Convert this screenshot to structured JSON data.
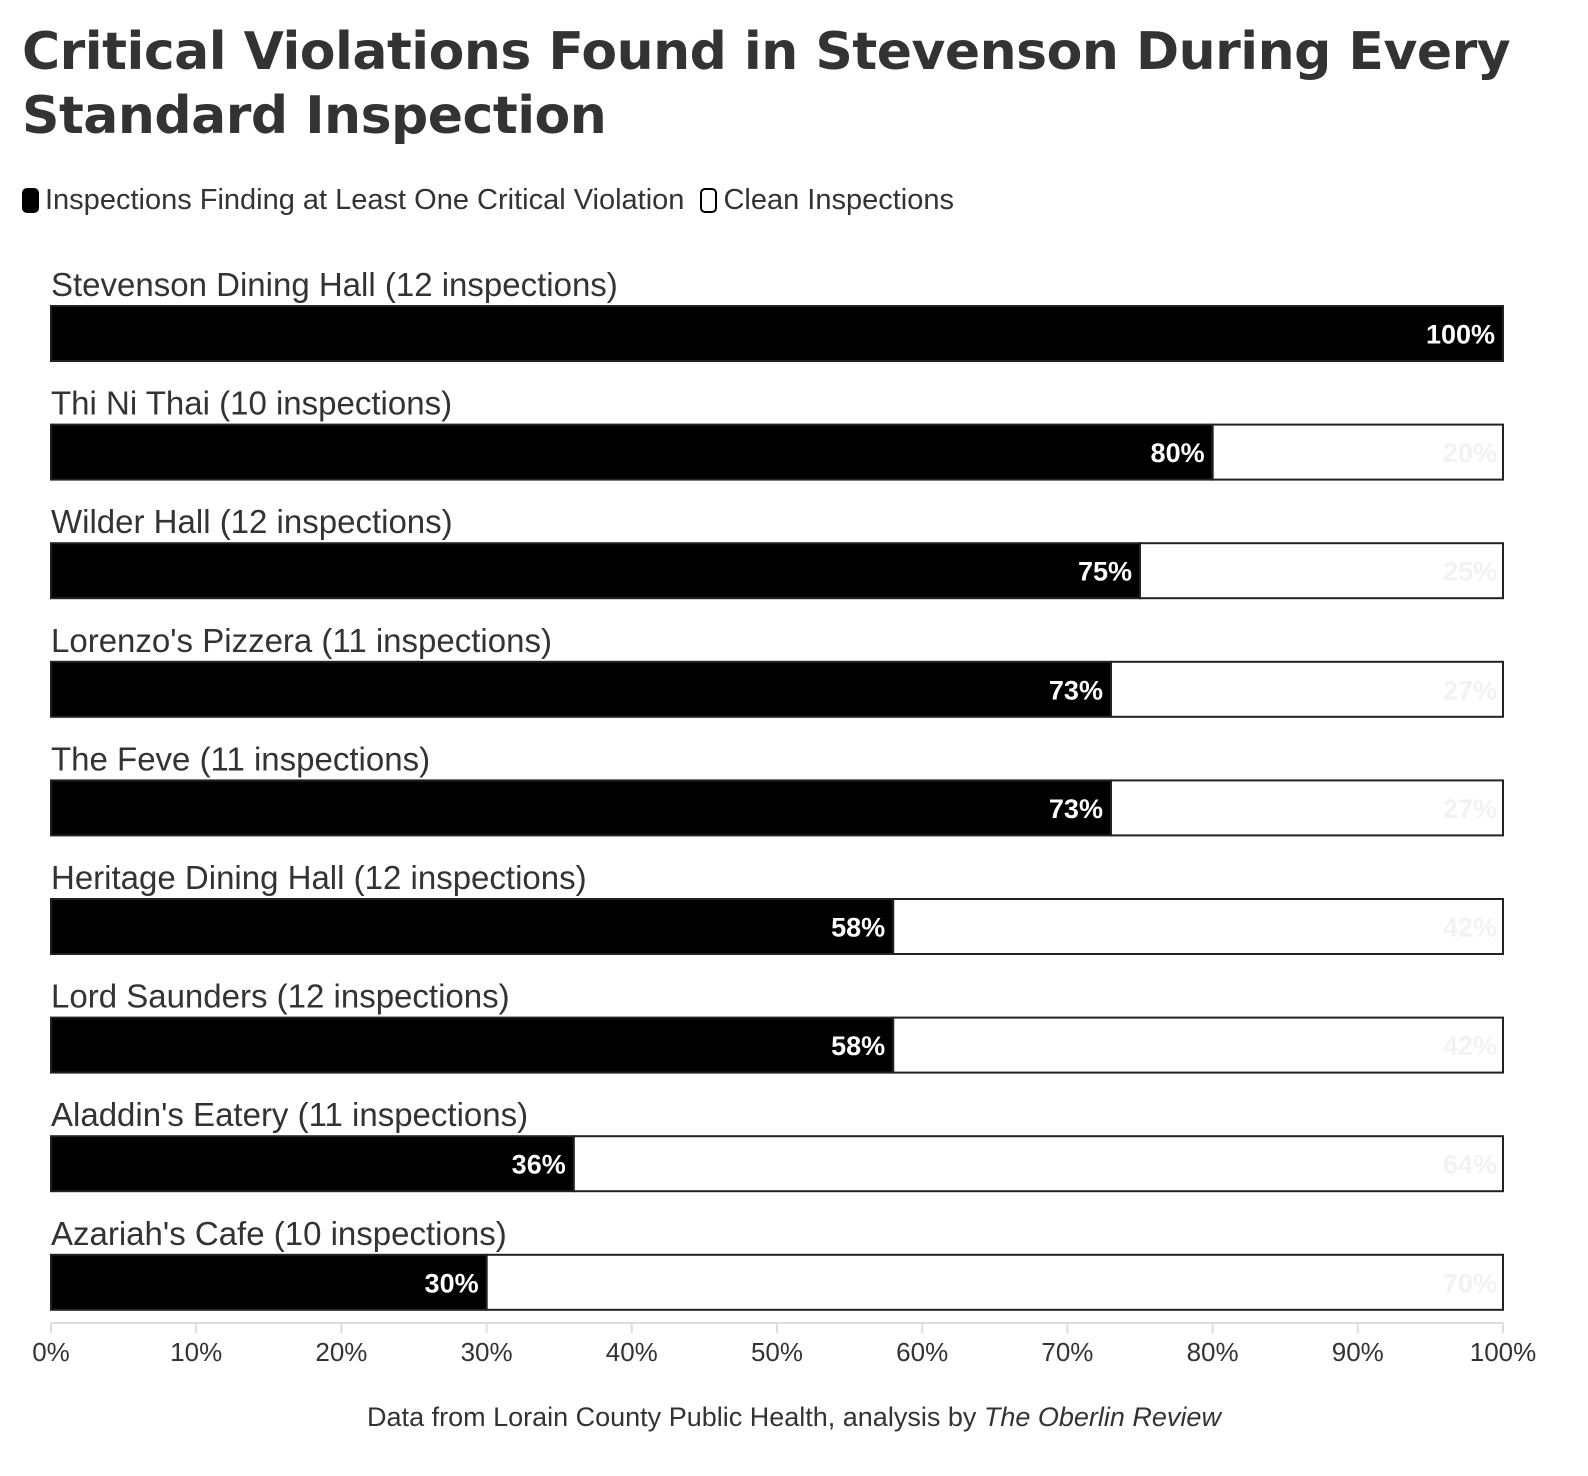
{
  "chart_data": {
    "type": "bar",
    "orientation": "horizontal-stacked-100",
    "title": "Critical Violations Found in Stevenson During Every Standard Inspection",
    "categories": [
      "Stevenson Dining Hall (12 inspections)",
      "Thi Ni Thai (10 inspections)",
      "Wilder Hall (12 inspections)",
      "Lorenzo's Pizzera (11 inspections)",
      "The Feve (11 inspections)",
      "Heritage Dining Hall (12 inspections)",
      "Lord Saunders (12 inspections)",
      "Aladdin's Eatery (11 inspections)",
      "Azariah's Cafe (10 inspections)"
    ],
    "series": [
      {
        "name": "Inspections Finding at Least One Critical Violation",
        "color": "#000000",
        "values": [
          100,
          80,
          75,
          73,
          73,
          58,
          58,
          36,
          30
        ],
        "labels": [
          "100%",
          "80%",
          "75%",
          "73%",
          "73%",
          "58%",
          "58%",
          "36%",
          "30%"
        ]
      },
      {
        "name": "Clean Inspections",
        "color": "#ffffff",
        "values": [
          0,
          20,
          25,
          27,
          27,
          42,
          42,
          64,
          70
        ],
        "labels": [
          "",
          "20%",
          "25%",
          "27%",
          "27%",
          "42%",
          "42%",
          "64%",
          "70%"
        ]
      }
    ],
    "xlim": [
      0,
      100
    ],
    "xticks": [
      "0%",
      "10%",
      "20%",
      "30%",
      "40%",
      "50%",
      "60%",
      "70%",
      "80%",
      "90%",
      "100%"
    ],
    "legend_position": "top-left",
    "grid": false
  },
  "source": {
    "prefix": "Data from Lorain County Public Health, analysis by ",
    "publication": "The Oberlin Review"
  }
}
